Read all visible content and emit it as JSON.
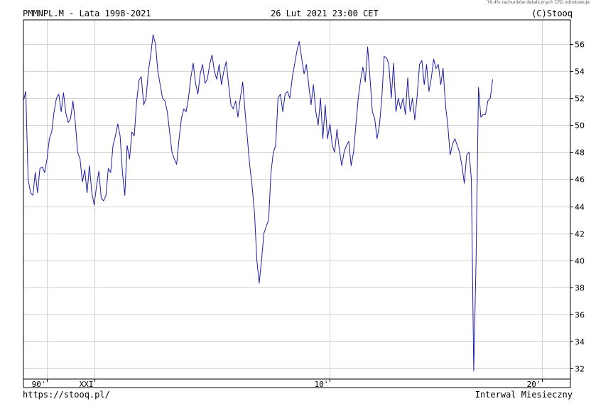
{
  "disclaimer": "76.4% rachunków detalicznych CFD odnotowuje",
  "header": {
    "title": "PMMNPL.M - Lata 1998-2021",
    "datetime": "26 Lut 2021 23:00 CET",
    "copyright": "(C)Stooq"
  },
  "footer": {
    "url": "https://stooq.pl/",
    "interval": "Interwal Miesieczny"
  },
  "chart_data": {
    "type": "line",
    "title": "PMMNPL.M - Lata 1998-2021",
    "xlabel": "",
    "ylabel": "",
    "ylim": [
      31.2,
      57.8
    ],
    "y_ticks": [
      32,
      34,
      36,
      38,
      40,
      42,
      44,
      46,
      48,
      50,
      52,
      54,
      56
    ],
    "xlim": [
      1998.0,
      2021.2
    ],
    "x_tick_labels": [
      {
        "label": "90'",
        "x": 1999.0
      },
      {
        "label": "XXI",
        "x": 2001.0
      },
      {
        "label": "10'",
        "x": 2011.0
      },
      {
        "label": "20'",
        "x": 2020.0
      }
    ],
    "x_gridlines": [
      1999.0,
      2001.0,
      2011.0,
      2020.0
    ],
    "grid": true,
    "line_color": "#1d1da8",
    "series": [
      {
        "values": [
          [
            1998.0,
            51.8
          ],
          [
            1998.1,
            52.5
          ],
          [
            1998.2,
            46.0
          ],
          [
            1998.3,
            45.0
          ],
          [
            1998.4,
            44.8
          ],
          [
            1998.5,
            46.5
          ],
          [
            1998.6,
            45.0
          ],
          [
            1998.7,
            46.8
          ],
          [
            1998.8,
            46.9
          ],
          [
            1998.9,
            46.5
          ],
          [
            1999.0,
            47.5
          ],
          [
            1999.1,
            49.0
          ],
          [
            1999.2,
            49.5
          ],
          [
            1999.3,
            51.0
          ],
          [
            1999.4,
            52.0
          ],
          [
            1999.5,
            52.3
          ],
          [
            1999.6,
            51.0
          ],
          [
            1999.7,
            52.4
          ],
          [
            1999.8,
            50.9
          ],
          [
            1999.9,
            50.2
          ],
          [
            2000.0,
            50.5
          ],
          [
            2000.1,
            51.8
          ],
          [
            2000.2,
            50.2
          ],
          [
            2000.3,
            48.0
          ],
          [
            2000.4,
            47.5
          ],
          [
            2000.5,
            45.8
          ],
          [
            2000.6,
            46.7
          ],
          [
            2000.7,
            45.0
          ],
          [
            2000.8,
            47.0
          ],
          [
            2000.9,
            45.0
          ],
          [
            2001.0,
            44.1
          ],
          [
            2001.1,
            45.5
          ],
          [
            2001.2,
            46.6
          ],
          [
            2001.3,
            44.6
          ],
          [
            2001.4,
            44.4
          ],
          [
            2001.5,
            44.8
          ],
          [
            2001.6,
            46.8
          ],
          [
            2001.7,
            46.5
          ],
          [
            2001.8,
            48.5
          ],
          [
            2001.9,
            49.2
          ],
          [
            2002.0,
            50.1
          ],
          [
            2002.1,
            49.2
          ],
          [
            2002.2,
            46.5
          ],
          [
            2002.3,
            44.8
          ],
          [
            2002.4,
            48.5
          ],
          [
            2002.5,
            47.5
          ],
          [
            2002.6,
            49.5
          ],
          [
            2002.7,
            49.2
          ],
          [
            2002.8,
            51.7
          ],
          [
            2002.9,
            53.3
          ],
          [
            2003.0,
            53.6
          ],
          [
            2003.1,
            51.5
          ],
          [
            2003.2,
            52.0
          ],
          [
            2003.3,
            54.0
          ],
          [
            2003.4,
            55.2
          ],
          [
            2003.5,
            56.7
          ],
          [
            2003.6,
            56.0
          ],
          [
            2003.7,
            54.0
          ],
          [
            2003.8,
            53.0
          ],
          [
            2003.9,
            52.0
          ],
          [
            2004.0,
            51.8
          ],
          [
            2004.1,
            51.0
          ],
          [
            2004.2,
            49.5
          ],
          [
            2004.3,
            48.0
          ],
          [
            2004.4,
            47.5
          ],
          [
            2004.5,
            47.1
          ],
          [
            2004.6,
            49.0
          ],
          [
            2004.7,
            50.5
          ],
          [
            2004.8,
            51.2
          ],
          [
            2004.9,
            51.0
          ],
          [
            2005.0,
            52.0
          ],
          [
            2005.1,
            53.5
          ],
          [
            2005.2,
            54.6
          ],
          [
            2005.3,
            53.1
          ],
          [
            2005.4,
            52.3
          ],
          [
            2005.5,
            53.8
          ],
          [
            2005.6,
            54.5
          ],
          [
            2005.7,
            53.1
          ],
          [
            2005.8,
            53.4
          ],
          [
            2005.9,
            54.5
          ],
          [
            2006.0,
            55.2
          ],
          [
            2006.1,
            54.0
          ],
          [
            2006.2,
            53.4
          ],
          [
            2006.3,
            54.5
          ],
          [
            2006.4,
            53.0
          ],
          [
            2006.5,
            54.0
          ],
          [
            2006.6,
            54.7
          ],
          [
            2006.7,
            53.0
          ],
          [
            2006.8,
            51.5
          ],
          [
            2006.9,
            51.2
          ],
          [
            2007.0,
            51.8
          ],
          [
            2007.1,
            50.6
          ],
          [
            2007.2,
            52.0
          ],
          [
            2007.3,
            53.2
          ],
          [
            2007.4,
            51.0
          ],
          [
            2007.5,
            49.0
          ],
          [
            2007.6,
            47.0
          ],
          [
            2007.7,
            45.5
          ],
          [
            2007.8,
            43.5
          ],
          [
            2007.9,
            40.0
          ],
          [
            2008.0,
            38.3
          ],
          [
            2008.1,
            40.0
          ],
          [
            2008.2,
            42.0
          ],
          [
            2008.3,
            42.5
          ],
          [
            2008.4,
            43.0
          ],
          [
            2008.5,
            46.5
          ],
          [
            2008.6,
            48.0
          ],
          [
            2008.7,
            48.5
          ],
          [
            2008.8,
            52.0
          ],
          [
            2008.9,
            52.3
          ],
          [
            2009.0,
            51.0
          ],
          [
            2009.1,
            52.3
          ],
          [
            2009.2,
            52.5
          ],
          [
            2009.3,
            52.0
          ],
          [
            2009.4,
            53.5
          ],
          [
            2009.5,
            54.5
          ],
          [
            2009.6,
            55.5
          ],
          [
            2009.7,
            56.2
          ],
          [
            2009.8,
            55.0
          ],
          [
            2009.9,
            53.8
          ],
          [
            2010.0,
            54.5
          ],
          [
            2010.1,
            53.0
          ],
          [
            2010.2,
            51.5
          ],
          [
            2010.3,
            53.0
          ],
          [
            2010.4,
            51.0
          ],
          [
            2010.5,
            50.0
          ],
          [
            2010.6,
            52.0
          ],
          [
            2010.7,
            49.0
          ],
          [
            2010.8,
            51.5
          ],
          [
            2010.9,
            49.0
          ],
          [
            2011.0,
            50.1
          ],
          [
            2011.1,
            48.5
          ],
          [
            2011.2,
            48.0
          ],
          [
            2011.3,
            49.7
          ],
          [
            2011.4,
            48.2
          ],
          [
            2011.5,
            47.0
          ],
          [
            2011.6,
            48.0
          ],
          [
            2011.7,
            48.5
          ],
          [
            2011.8,
            48.8
          ],
          [
            2011.9,
            47.0
          ],
          [
            2012.0,
            48.0
          ],
          [
            2012.1,
            50.0
          ],
          [
            2012.2,
            52.0
          ],
          [
            2012.3,
            53.3
          ],
          [
            2012.4,
            54.3
          ],
          [
            2012.5,
            53.2
          ],
          [
            2012.6,
            55.8
          ],
          [
            2012.7,
            53.5
          ],
          [
            2012.8,
            51.0
          ],
          [
            2012.9,
            50.5
          ],
          [
            2013.0,
            49.0
          ],
          [
            2013.1,
            50.0
          ],
          [
            2013.2,
            52.0
          ],
          [
            2013.3,
            55.1
          ],
          [
            2013.4,
            55.0
          ],
          [
            2013.5,
            54.5
          ],
          [
            2013.6,
            52.0
          ],
          [
            2013.7,
            54.6
          ],
          [
            2013.8,
            51.0
          ],
          [
            2013.9,
            52.0
          ],
          [
            2014.0,
            51.2
          ],
          [
            2014.1,
            52.0
          ],
          [
            2014.2,
            50.8
          ],
          [
            2014.3,
            53.5
          ],
          [
            2014.4,
            51.0
          ],
          [
            2014.5,
            52.0
          ],
          [
            2014.6,
            50.4
          ],
          [
            2014.7,
            52.2
          ],
          [
            2014.8,
            54.5
          ],
          [
            2014.9,
            54.8
          ],
          [
            2015.0,
            53.0
          ],
          [
            2015.1,
            54.5
          ],
          [
            2015.2,
            52.5
          ],
          [
            2015.3,
            53.5
          ],
          [
            2015.4,
            54.9
          ],
          [
            2015.5,
            54.2
          ],
          [
            2015.6,
            54.5
          ],
          [
            2015.7,
            53.0
          ],
          [
            2015.8,
            54.2
          ],
          [
            2015.9,
            51.5
          ],
          [
            2016.0,
            50.0
          ],
          [
            2016.1,
            47.8
          ],
          [
            2016.2,
            48.6
          ],
          [
            2016.3,
            49.0
          ],
          [
            2016.4,
            48.5
          ],
          [
            2016.5,
            48.0
          ],
          [
            2016.6,
            47.0
          ],
          [
            2016.7,
            45.7
          ],
          [
            2016.8,
            47.8
          ],
          [
            2016.9,
            48.0
          ],
          [
            2017.0,
            46.0
          ],
          [
            2017.1,
            31.8
          ],
          [
            2017.2,
            40.0
          ],
          [
            2017.3,
            52.8
          ],
          [
            2017.4,
            50.6
          ],
          [
            2017.5,
            50.8
          ],
          [
            2017.6,
            50.8
          ],
          [
            2017.7,
            51.8
          ],
          [
            2017.8,
            52.0
          ],
          [
            2017.9,
            53.4
          ]
        ]
      }
    ]
  }
}
